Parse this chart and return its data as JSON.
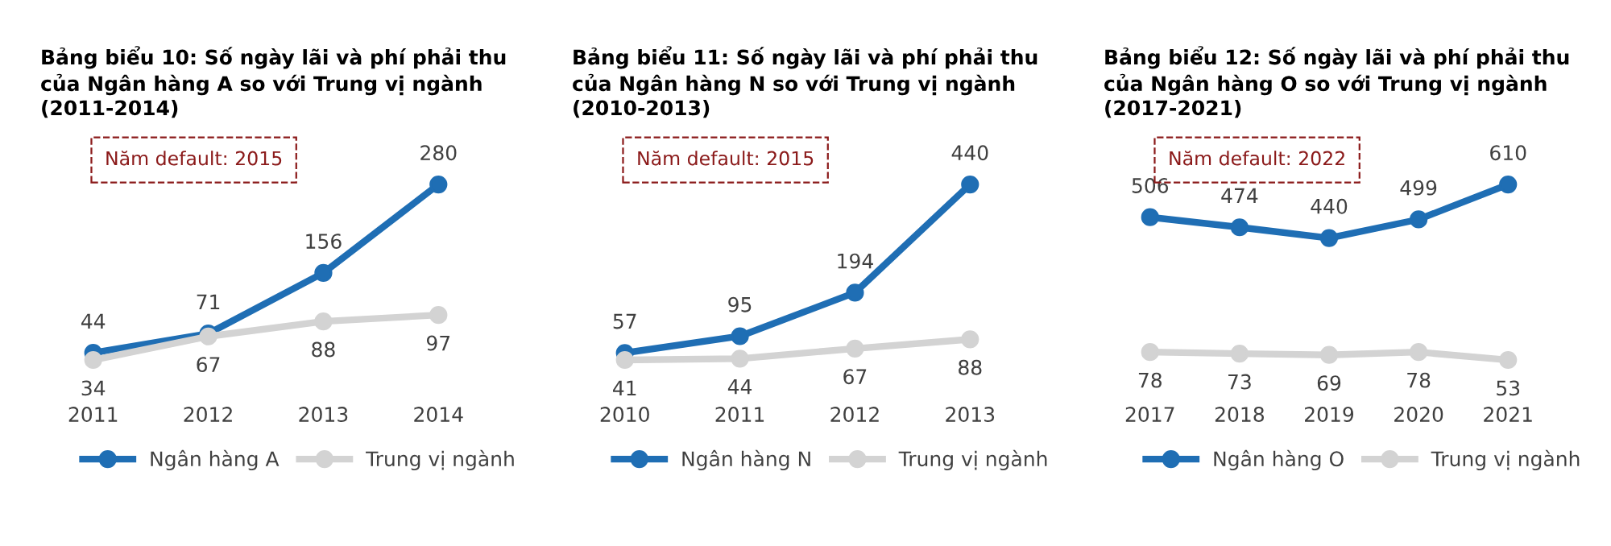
{
  "chart_data": [
    {
      "type": "line",
      "title": "Bảng biểu 10: Số ngày lãi và phí phải thu\ncủa Ngân hàng A so với Trung vị ngành\n(2011-2014)",
      "categories": [
        "2011",
        "2012",
        "2013",
        "2014"
      ],
      "series": [
        {
          "name": "Ngân hàng A",
          "color": "#1f6eb4",
          "values": [
            44,
            71,
            156,
            280
          ]
        },
        {
          "name": "Trung vị ngành",
          "color": "#d3d3d3",
          "values": [
            34,
            67,
            88,
            97
          ]
        }
      ],
      "annotations": [
        "Năm default: 2015"
      ],
      "data_labels": true,
      "marker": "circle",
      "legend": "bottom",
      "tick_labels": "x",
      "grid": false
    },
    {
      "type": "line",
      "title": "Bảng biểu 11: Số ngày lãi và phí phải thu\ncủa Ngân hàng N so với Trung vị ngành\n(2010-2013)",
      "categories": [
        "2010",
        "2011",
        "2012",
        "2013"
      ],
      "series": [
        {
          "name": "Ngân hàng N",
          "color": "#1f6eb4",
          "values": [
            57,
            95,
            194,
            440
          ]
        },
        {
          "name": "Trung vị ngành",
          "color": "#d3d3d3",
          "values": [
            41,
            44,
            67,
            88
          ]
        }
      ],
      "annotations": [
        "Năm default: 2015"
      ],
      "data_labels": true,
      "marker": "circle",
      "legend": "bottom",
      "tick_labels": "x",
      "grid": false
    },
    {
      "type": "line",
      "title": "Bảng biểu 12: Số ngày lãi và phí phải thu\ncủa Ngân hàng O so với Trung vị ngành\n(2017-2021)",
      "categories": [
        "2017",
        "2018",
        "2019",
        "2020",
        "2021"
      ],
      "series": [
        {
          "name": "Ngân hàng O",
          "color": "#1f6eb4",
          "values": [
            506,
            474,
            440,
            499,
            610
          ]
        },
        {
          "name": "Trung vị ngành",
          "color": "#d3d3d3",
          "values": [
            78,
            73,
            69,
            78,
            53
          ]
        }
      ],
      "annotations": [
        "Năm default: 2022"
      ],
      "data_labels": true,
      "marker": "circle",
      "legend": "bottom",
      "tick_labels": "x",
      "grid": false
    }
  ]
}
